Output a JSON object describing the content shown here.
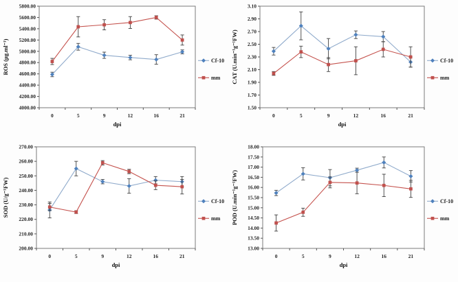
{
  "palette": {
    "series1_marker": "#4f81bd",
    "series1_line": "#8faacb",
    "series2_marker": "#c0504d",
    "series2_line": "#c4504b",
    "error_bar": "#3f3f3f",
    "plot_border": "#7a7a7a",
    "axis_line": "#555555",
    "text": "#262626"
  },
  "chart_data": [
    {
      "id": "ros",
      "type": "line",
      "title": "",
      "ylabel": "ROS (µg.ml⁻¹)",
      "xlabel": "dpi",
      "categories": [
        "0",
        "5",
        "9",
        "12",
        "16",
        "21"
      ],
      "ylim": [
        4000,
        5800
      ],
      "ystep": 200,
      "ydecimals": 2,
      "grid": false,
      "legend_position": "right",
      "series": [
        {
          "name": "Cf-10",
          "marker": "diamond",
          "color": "#4f81bd",
          "line_color": "#8faacb",
          "values": [
            4590,
            5080,
            4930,
            4890,
            4855,
            4990
          ],
          "errors": [
            40,
            60,
            55,
            40,
            85,
            35
          ]
        },
        {
          "name": "mm",
          "marker": "square",
          "color": "#c0504d",
          "line_color": "#c4504b",
          "values": [
            4820,
            5435,
            5470,
            5510,
            5600,
            5200
          ],
          "errors": [
            55,
            180,
            90,
            105,
            30,
            90
          ]
        }
      ]
    },
    {
      "id": "cat",
      "type": "line",
      "title": "",
      "ylabel": "CAT (U.min⁻¹g⁻¹FW)",
      "xlabel": "dpi",
      "categories": [
        "0",
        "5",
        "9",
        "12",
        "16",
        "21"
      ],
      "ylim": [
        1.5,
        3.1
      ],
      "ystep": 0.2,
      "ydecimals": 2,
      "grid": false,
      "legend_position": "right",
      "series": [
        {
          "name": "Cf-10",
          "marker": "diamond",
          "color": "#4f81bd",
          "line_color": "#8faacb",
          "values": [
            2.39,
            2.79,
            2.43,
            2.65,
            2.62,
            2.22
          ],
          "errors": [
            0.06,
            0.22,
            0.16,
            0.06,
            0.08,
            0.08
          ]
        },
        {
          "name": "mm",
          "marker": "square",
          "color": "#c0504d",
          "line_color": "#c4504b",
          "values": [
            2.04,
            2.38,
            2.18,
            2.24,
            2.42,
            2.3
          ],
          "errors": [
            0.03,
            0.09,
            0.11,
            0.22,
            0.12,
            0.16
          ]
        }
      ]
    },
    {
      "id": "sod",
      "type": "line",
      "title": "",
      "ylabel": "SOD (U/g⁻¹FW)",
      "xlabel": "dpi",
      "categories": [
        "0",
        "5",
        "9",
        "12",
        "16",
        "21"
      ],
      "ylim": [
        200,
        270
      ],
      "ystep": 10,
      "ydecimals": 2,
      "grid": false,
      "legend_position": "right",
      "series": [
        {
          "name": "Cf-10",
          "marker": "diamond",
          "color": "#4f81bd",
          "line_color": "#8faacb",
          "values": [
            226.5,
            255,
            246,
            243,
            247,
            246
          ],
          "errors": [
            5.5,
            5,
            1.5,
            5,
            2.5,
            3.5
          ]
        },
        {
          "name": "mm",
          "marker": "square",
          "color": "#c0504d",
          "line_color": "#c4504b",
          "values": [
            228.5,
            225,
            259,
            253,
            243.5,
            242.5
          ],
          "errors": [
            2.5,
            1,
            1.5,
            1.5,
            3,
            5
          ]
        }
      ]
    },
    {
      "id": "pod",
      "type": "line",
      "title": "",
      "ylabel": "POD (U.min⁻¹g⁻¹FW)",
      "xlabel": "dpi",
      "categories": [
        "0",
        "5",
        "9",
        "12",
        "16",
        "21"
      ],
      "ylim": [
        13,
        18
      ],
      "ystep": 0.5,
      "ydecimals": 2,
      "grid": false,
      "legend_position": "right",
      "series": [
        {
          "name": "Cf-10",
          "marker": "diamond",
          "color": "#4f81bd",
          "line_color": "#8faacb",
          "values": [
            15.73,
            16.67,
            16.48,
            16.85,
            17.23,
            16.55
          ],
          "errors": [
            0.13,
            0.3,
            0.4,
            0.1,
            0.27,
            0.28
          ]
        },
        {
          "name": "mm",
          "marker": "square",
          "color": "#c0504d",
          "line_color": "#c4504b",
          "values": [
            14.25,
            14.78,
            16.25,
            16.22,
            16.1,
            15.93
          ],
          "errors": [
            0.4,
            0.2,
            0.27,
            0.53,
            0.55,
            0.42
          ]
        }
      ]
    }
  ]
}
